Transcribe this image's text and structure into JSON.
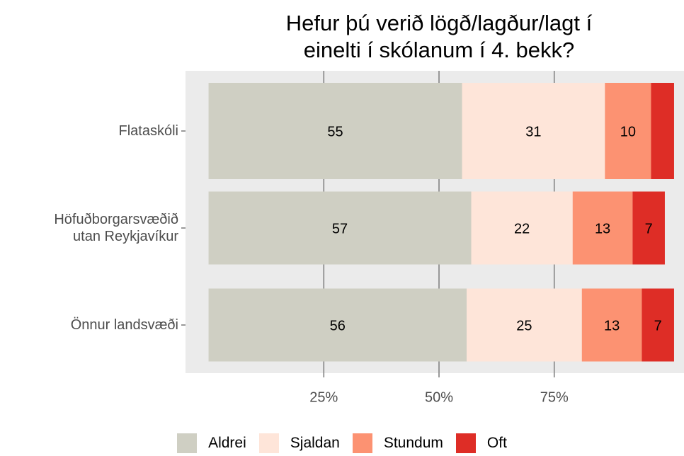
{
  "chart_data": {
    "type": "stacked-bar-horizontal",
    "title": "Hefur þú verið lögð/lagður/lagt í\neinelti í skólanum í 4. bekk?",
    "categories": [
      "Flataskóli",
      "Höfuðborgarsvæðið\nutan Reykjavíkur",
      "Önnur landsvæði"
    ],
    "series": [
      {
        "name": "Aldrei",
        "color": "#cfcfc3",
        "values": [
          55,
          57,
          56
        ]
      },
      {
        "name": "Sjaldan",
        "color": "#fee5d9",
        "values": [
          31,
          22,
          25
        ]
      },
      {
        "name": "Stundum",
        "color": "#fc9272",
        "values": [
          10,
          13,
          13
        ]
      },
      {
        "name": "Oft",
        "color": "#de2d26",
        "values": [
          5,
          7,
          7
        ]
      }
    ],
    "xlim": [
      -5,
      105
    ],
    "xticks": [
      {
        "value": 25,
        "label": "25%"
      },
      {
        "value": 50,
        "label": "50%"
      },
      {
        "value": 75,
        "label": "75%"
      }
    ],
    "grid": true,
    "legend": "bottom"
  }
}
